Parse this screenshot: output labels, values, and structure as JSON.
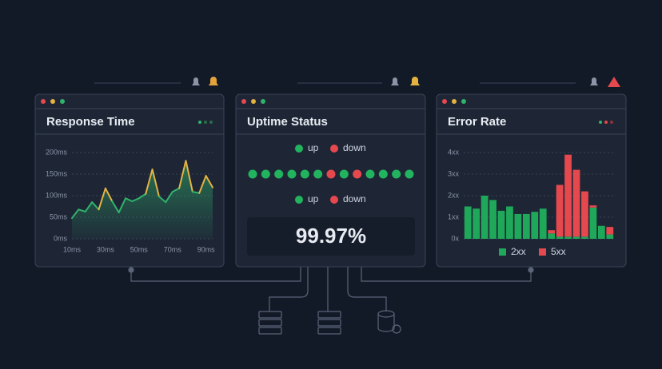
{
  "chart_data": [
    {
      "type": "line",
      "title": "Response Time",
      "xlim": [
        10,
        94
      ],
      "ylim": [
        0,
        200
      ],
      "xticks": [
        {
          "value": 10,
          "label": "10ms"
        },
        {
          "value": 30,
          "label": "30ms"
        },
        {
          "value": 50,
          "label": "50ms"
        },
        {
          "value": 70,
          "label": "70ms"
        },
        {
          "value": 90,
          "label": "90ms"
        }
      ],
      "yticks": [
        {
          "value": 0,
          "label": "0ms"
        },
        {
          "value": 50,
          "label": "50ms"
        },
        {
          "value": 100,
          "label": "100ms"
        },
        {
          "value": 150,
          "label": "150ms"
        },
        {
          "value": 200,
          "label": "200ms"
        }
      ],
      "grid": true,
      "series": [
        {
          "color": "#2fb36b",
          "x": [
            10,
            14,
            18,
            22,
            26,
            30,
            34,
            38,
            42,
            46,
            50,
            54,
            58,
            62,
            66,
            70,
            74,
            78,
            82,
            86,
            90,
            94
          ],
          "values": [
            48,
            68,
            63,
            85,
            68,
            117,
            87,
            61,
            94,
            87,
            94,
            104,
            161,
            98,
            85,
            109,
            117,
            181,
            109,
            106,
            146,
            119
          ],
          "point_colors": [
            "#2fb36b",
            "#2fb36b",
            "#2fb36b",
            "#2fb36b",
            "#2fb36b",
            "#e3b341",
            "#2fb36b",
            "#2fb36b",
            "#2fb36b",
            "#2fb36b",
            "#2fb36b",
            "#2fb36b",
            "#e3b341",
            "#2fb36b",
            "#2fb36b",
            "#2fb36b",
            "#2fb36b",
            "#e3b341",
            "#2fb36b",
            "#2fb36b",
            "#e3b341",
            "#2fb36b"
          ]
        }
      ]
    },
    {
      "type": "status",
      "title": "Uptime Status",
      "series": [
        {
          "name": "up",
          "color": "#22b35e"
        },
        {
          "name": "down",
          "color": "#e5484d"
        }
      ],
      "values": [
        "up",
        "up",
        "up",
        "up",
        "up",
        "up",
        "down",
        "up",
        "down",
        "up",
        "up",
        "up",
        "up"
      ],
      "summary": 99.97,
      "summary_label": "99.97%"
    },
    {
      "type": "stacked_bar",
      "title": "Error Rate",
      "categories": [
        null,
        null,
        null,
        null,
        null,
        null,
        null,
        null,
        null,
        null,
        null,
        null,
        null,
        null,
        null,
        null,
        null,
        null
      ],
      "ylim": [
        0,
        4
      ],
      "yticks": [
        {
          "value": 0,
          "label": "0x"
        },
        {
          "value": 1,
          "label": "1xx"
        },
        {
          "value": 2,
          "label": "2xx"
        },
        {
          "value": 3,
          "label": "3xx"
        },
        {
          "value": 4,
          "label": "4xx"
        }
      ],
      "grid": true,
      "series": [
        {
          "name": "2xx",
          "color": "#1fa85a",
          "values": [
            1.5,
            1.4,
            2.0,
            1.8,
            1.3,
            1.5,
            1.15,
            1.15,
            1.25,
            1.4,
            0.25,
            0.1,
            0.1,
            0.1,
            0.1,
            1.45,
            0.6,
            0.2
          ]
        },
        {
          "name": "5xx",
          "color": "#e5484d",
          "values": [
            0,
            0,
            0,
            0,
            0,
            0,
            0,
            0,
            0,
            0,
            0.15,
            2.4,
            3.8,
            3.1,
            2.1,
            0.1,
            0,
            0.35
          ]
        }
      ]
    }
  ]
}
